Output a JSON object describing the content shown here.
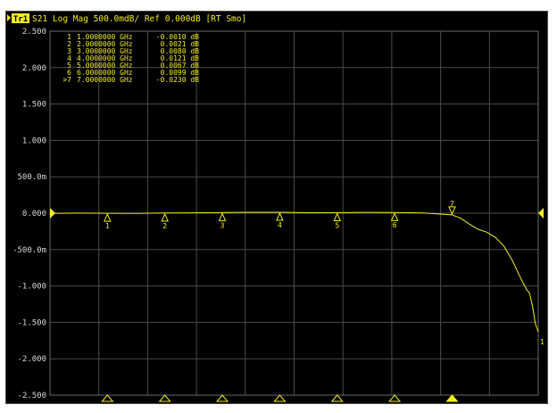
{
  "header": {
    "trace_badge": "Tr1",
    "status": "S21 Log Mag 500.0mdB/ Ref 0.000dB [RT Smo]"
  },
  "colors": {
    "trace": "#f2ee1e",
    "grid": "#4b4b4b",
    "background": "#000000",
    "tick_label": "#d8d8d8"
  },
  "chart_data": {
    "type": "line",
    "title": "",
    "xlabel": "",
    "ylabel": "",
    "ylim": [
      -2.5,
      2.5
    ],
    "y_tick_labels": [
      "2.500",
      "2.000",
      "1.500",
      "1.000",
      "500.0m",
      "0.000",
      "-500.0m",
      "-1.000",
      "-1.500",
      "-2.000",
      "-2.500"
    ],
    "y_tick_values": [
      2.5,
      2.0,
      1.5,
      1.0,
      0.5,
      0.0,
      -0.5,
      -1.0,
      -1.5,
      -2.0,
      -2.5
    ],
    "x_unit": "GHz",
    "xlim": [
      0.0,
      8.5
    ],
    "x_gridlines": 10,
    "reference_level_dB": 0.0,
    "scale_mdB_per_div": 500.0,
    "grid": true,
    "series": [
      {
        "values": [
          {
            "x": 0.0,
            "y": -0.002
          },
          {
            "x": 0.5,
            "y": 0.001
          },
          {
            "x": 1.0,
            "y": -0.001
          },
          {
            "x": 1.5,
            "y": -0.004
          },
          {
            "x": 2.0,
            "y": 0.002
          },
          {
            "x": 2.5,
            "y": 0.005
          },
          {
            "x": 3.0,
            "y": 0.008
          },
          {
            "x": 3.5,
            "y": 0.012
          },
          {
            "x": 4.0,
            "y": 0.012
          },
          {
            "x": 4.5,
            "y": 0.006
          },
          {
            "x": 5.0,
            "y": 0.007
          },
          {
            "x": 5.5,
            "y": 0.011
          },
          {
            "x": 6.0,
            "y": 0.01
          },
          {
            "x": 6.5,
            "y": 0.003
          },
          {
            "x": 7.0,
            "y": -0.023
          },
          {
            "x": 7.15,
            "y": -0.07
          },
          {
            "x": 7.3,
            "y": -0.15
          },
          {
            "x": 7.45,
            "y": -0.22
          },
          {
            "x": 7.6,
            "y": -0.26
          },
          {
            "x": 7.75,
            "y": -0.33
          },
          {
            "x": 7.9,
            "y": -0.45
          },
          {
            "x": 8.05,
            "y": -0.65
          },
          {
            "x": 8.15,
            "y": -0.82
          },
          {
            "x": 8.25,
            "y": -0.98
          },
          {
            "x": 8.3,
            "y": -1.05
          },
          {
            "x": 8.35,
            "y": -1.1
          },
          {
            "x": 8.4,
            "y": -1.28
          },
          {
            "x": 8.45,
            "y": -1.52
          },
          {
            "x": 8.5,
            "y": -1.63
          }
        ]
      }
    ],
    "markers": [
      {
        "label": "1",
        "table_label": "1",
        "freq": "1.0000000 GHz",
        "value": "-0.0010 dB",
        "x": 1.0,
        "y": -0.001,
        "active": false
      },
      {
        "label": "2",
        "table_label": "2",
        "freq": "2.0000000 GHz",
        "value": "0.0021 dB",
        "x": 2.0,
        "y": 0.0021,
        "active": false
      },
      {
        "label": "3",
        "table_label": "3",
        "freq": "3.0000000 GHz",
        "value": "0.0080 dB",
        "x": 3.0,
        "y": 0.008,
        "active": false
      },
      {
        "label": "4",
        "table_label": "4",
        "freq": "4.0000000 GHz",
        "value": "0.0121 dB",
        "x": 4.0,
        "y": 0.0121,
        "active": false
      },
      {
        "label": "5",
        "table_label": "5",
        "freq": "5.0000000 GHz",
        "value": "0.0067 dB",
        "x": 5.0,
        "y": 0.0067,
        "active": false
      },
      {
        "label": "6",
        "table_label": "6",
        "freq": "6.0000000 GHz",
        "value": "0.0099 dB",
        "x": 6.0,
        "y": 0.0099,
        "active": false
      },
      {
        "label": "7",
        "table_label": ">7",
        "freq": "7.0000000 GHz",
        "value": "-0.0230 dB",
        "x": 7.0,
        "y": -0.023,
        "active": true
      }
    ],
    "trace_end_label": "1"
  }
}
